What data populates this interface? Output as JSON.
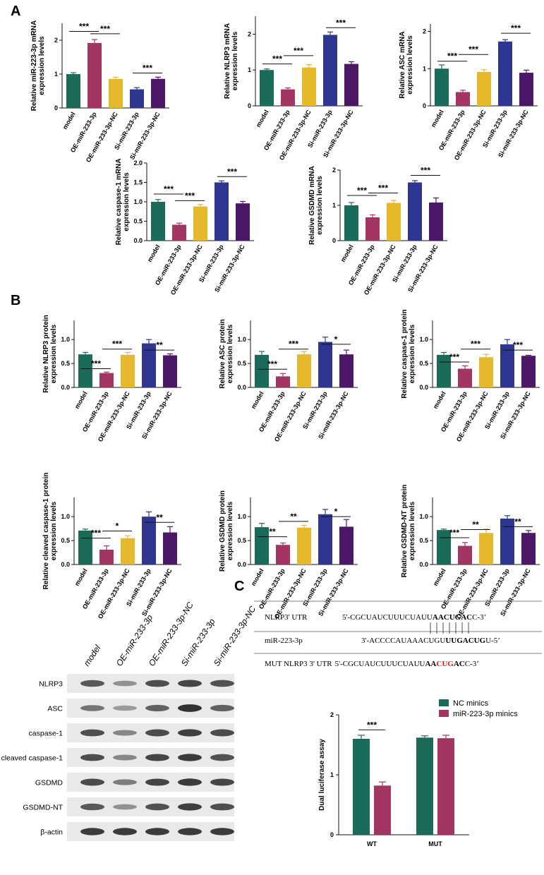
{
  "panel_labels": [
    "A",
    "B",
    "C"
  ],
  "colors": [
    "#1a6b5a",
    "#a33563",
    "#e6b92c",
    "#2e3690",
    "#4c1767"
  ],
  "chart_data": [
    {
      "type": "bar",
      "panel": "A",
      "ylabel": [
        "Relative miR-223-3p mRNA",
        "expression levels"
      ],
      "categories": [
        "model",
        "OE-miR-233-3p",
        "OE-miR-233-3p-NC",
        "Si-miR-233-3p",
        "Si-miR-233-3p-NC"
      ],
      "values": [
        1.0,
        1.92,
        0.86,
        0.55,
        0.86
      ],
      "errors": [
        0.04,
        0.1,
        0.05,
        0.05,
        0.05
      ],
      "ylim": [
        0,
        2.5
      ],
      "yticks": [
        0,
        1,
        2
      ],
      "sig": [
        {
          "from": 0,
          "to": 1,
          "label": "***",
          "y": 2.26
        },
        {
          "from": 1,
          "to": 2,
          "label": "***",
          "y": 2.19
        },
        {
          "from": 3,
          "to": 4,
          "label": "***",
          "y": 1.03
        }
      ]
    },
    {
      "type": "bar",
      "panel": "A",
      "ylabel": [
        "Relative NLRP3 mRNA",
        "expression levels"
      ],
      "categories": [
        "model",
        "OE-miR-233-3p",
        "OE-miR-233-3p-NC",
        "Si-miR-233-3p",
        "Si-miR-233-3p-NC"
      ],
      "values": [
        1.0,
        0.46,
        1.07,
        1.98,
        1.17
      ],
      "errors": [
        0.03,
        0.04,
        0.08,
        0.08,
        0.06
      ],
      "ylim": [
        0,
        2.5
      ],
      "yticks": [
        0,
        1,
        2
      ],
      "sig": [
        {
          "from": 0,
          "to": 1,
          "label": "***",
          "y": 1.17
        },
        {
          "from": 1,
          "to": 2,
          "label": "***",
          "y": 1.4
        },
        {
          "from": 3,
          "to": 4,
          "label": "***",
          "y": 2.18
        }
      ]
    },
    {
      "type": "bar",
      "panel": "A",
      "ylabel": [
        "Relative ASC mRNA",
        "expression levels"
      ],
      "categories": [
        "model",
        "OE-miR-233-3p",
        "OE-miR-233-3p-NC",
        "Si-miR-233-3p",
        "Si-miR-233-3p-NC"
      ],
      "values": [
        1.0,
        0.37,
        0.91,
        1.73,
        0.89
      ],
      "errors": [
        0.1,
        0.05,
        0.06,
        0.05,
        0.07
      ],
      "ylim": [
        0,
        2.2
      ],
      "yticks": [
        0,
        1,
        2
      ],
      "sig": [
        {
          "from": 0,
          "to": 1,
          "label": "***",
          "y": 1.2
        },
        {
          "from": 1,
          "to": 2,
          "label": "***",
          "y": 1.38
        },
        {
          "from": 3,
          "to": 4,
          "label": "***",
          "y": 1.95
        }
      ]
    },
    {
      "type": "bar",
      "panel": "A",
      "ylabel": [
        "Relative caspase-1 mRNA",
        "expression levels"
      ],
      "categories": [
        "model",
        "OE-miR-233-3p",
        "OE-miR-233-3p-NC",
        "Si-miR-233-3p",
        "Si-miR-233-3p-NC"
      ],
      "values": [
        1.0,
        0.41,
        0.88,
        1.5,
        0.96
      ],
      "errors": [
        0.06,
        0.04,
        0.05,
        0.04,
        0.05
      ],
      "ylim": [
        0,
        2.0
      ],
      "yticks": [
        0,
        0.5,
        1.0,
        1.5,
        2.0
      ],
      "sig": [
        {
          "from": 0,
          "to": 1,
          "label": "***",
          "y": 1.2
        },
        {
          "from": 1,
          "to": 2,
          "label": "***",
          "y": 1.03
        },
        {
          "from": 3,
          "to": 4,
          "label": "***",
          "y": 1.65
        }
      ]
    },
    {
      "type": "bar",
      "panel": "A",
      "ylabel": [
        "Relative GSDMD mRNA",
        "expression levels"
      ],
      "categories": [
        "model",
        "OE-miR-233-3p",
        "OE-miR-233-3p-NC",
        "Si-miR-233-3p",
        "Si-miR-233-3p-NC"
      ],
      "values": [
        1.0,
        0.66,
        1.07,
        1.65,
        1.08
      ],
      "errors": [
        0.08,
        0.07,
        0.07,
        0.05,
        0.13
      ],
      "ylim": [
        0,
        2.0
      ],
      "yticks": [
        0,
        1,
        2
      ],
      "sig": [
        {
          "from": 0,
          "to": 1,
          "label": "***",
          "y": 1.28
        },
        {
          "from": 1,
          "to": 2,
          "label": "***",
          "y": 1.35
        },
        {
          "from": 3,
          "to": 4,
          "label": "***",
          "y": 1.85
        }
      ]
    },
    {
      "type": "bar",
      "panel": "B",
      "ylabel": [
        "Relative NLRP3 protein",
        "expression levels"
      ],
      "categories": [
        "model",
        "OE-miR-233-3p",
        "OE-miR-233-3p-NC",
        "Si-miR-233-3p",
        "Si-miR-233-3p-NC"
      ],
      "values": [
        0.69,
        0.3,
        0.68,
        0.92,
        0.67
      ],
      "errors": [
        0.04,
        0.02,
        0.05,
        0.08,
        0.03
      ],
      "ylim": [
        0,
        1.4
      ],
      "yticks": [
        0,
        0.5,
        1.0
      ],
      "sig": [
        {
          "from": 0,
          "to": 1,
          "label": "***",
          "y": 0.39
        },
        {
          "from": 1,
          "to": 2,
          "label": "***",
          "y": 0.8
        },
        {
          "from": 3,
          "to": 4,
          "label": "**",
          "y": 0.78
        }
      ]
    },
    {
      "type": "bar",
      "panel": "B",
      "ylabel": [
        "Relative ASC protein",
        "expression levels"
      ],
      "categories": [
        "model",
        "OE-miR-233-3p",
        "OE-miR-233-3p-NC",
        "Si-miR-233-3p",
        "Si-miR-233-3p-NC"
      ],
      "values": [
        0.68,
        0.23,
        0.69,
        0.95,
        0.69
      ],
      "errors": [
        0.07,
        0.06,
        0.06,
        0.1,
        0.09
      ],
      "ylim": [
        0,
        1.4
      ],
      "yticks": [
        0,
        0.5,
        1.0
      ],
      "sig": [
        {
          "from": 0,
          "to": 1,
          "label": "***",
          "y": 0.38
        },
        {
          "from": 1,
          "to": 2,
          "label": "***",
          "y": 0.8
        },
        {
          "from": 3,
          "to": 4,
          "label": "*",
          "y": 0.9
        }
      ]
    },
    {
      "type": "bar",
      "panel": "B",
      "ylabel": [
        "Relative caspase-1 protein",
        "expression levels"
      ],
      "categories": [
        "model",
        "OE-miR-233-3p",
        "OE-miR-233-3p-NC",
        "Si-miR-233-3p",
        "Si-miR-233-3p-NC"
      ],
      "values": [
        0.68,
        0.39,
        0.63,
        0.9,
        0.66
      ],
      "errors": [
        0.05,
        0.06,
        0.06,
        0.1,
        0.01
      ],
      "ylim": [
        0,
        1.4
      ],
      "yticks": [
        0,
        0.5,
        1.0
      ],
      "sig": [
        {
          "from": 0,
          "to": 1,
          "label": "***",
          "y": 0.53
        },
        {
          "from": 1,
          "to": 2,
          "label": "***",
          "y": 0.8
        },
        {
          "from": 3,
          "to": 4,
          "label": "***",
          "y": 0.78
        }
      ]
    },
    {
      "type": "bar",
      "panel": "B",
      "ylabel": [
        "Relative cleaved caspase-1 protein",
        "expression levels"
      ],
      "categories": [
        "model",
        "OE-miR-233-3p",
        "OE-miR-233-3p-NC",
        "Si-miR-233-3p",
        "Si-miR-233-3p-NC"
      ],
      "values": [
        0.71,
        0.31,
        0.55,
        1.0,
        0.67
      ],
      "errors": [
        0.03,
        0.08,
        0.05,
        0.1,
        0.12
      ],
      "ylim": [
        0,
        1.4
      ],
      "yticks": [
        0,
        0.5,
        1.0
      ],
      "sig": [
        {
          "from": 0,
          "to": 1,
          "label": "***",
          "y": 0.55
        },
        {
          "from": 1,
          "to": 2,
          "label": "*",
          "y": 0.7
        },
        {
          "from": 3,
          "to": 4,
          "label": "**",
          "y": 0.88
        }
      ]
    },
    {
      "type": "bar",
      "panel": "B",
      "ylabel": [
        "Relative GSDMD protein",
        "expression levels"
      ],
      "categories": [
        "model",
        "OE-miR-233-3p",
        "OE-miR-233-3p-NC",
        "Si-miR-233-3p",
        "Si-miR-233-3p-NC"
      ],
      "values": [
        0.78,
        0.41,
        0.77,
        1.05,
        0.79
      ],
      "errors": [
        0.08,
        0.04,
        0.05,
        0.1,
        0.15
      ],
      "ylim": [
        0,
        1.4
      ],
      "yticks": [
        0,
        0.5,
        1.0
      ],
      "sig": [
        {
          "from": 0,
          "to": 1,
          "label": "**",
          "y": 0.58
        },
        {
          "from": 1,
          "to": 2,
          "label": "**",
          "y": 0.9
        },
        {
          "from": 3,
          "to": 4,
          "label": "*",
          "y": 1.0
        }
      ]
    },
    {
      "type": "bar",
      "panel": "B",
      "ylabel": [
        "Relative GSDMD-NT protein",
        "expression levels"
      ],
      "categories": [
        "model",
        "OE-miR-233-3p",
        "OE-miR-233-3p-NC",
        "Si-miR-233-3p",
        "Si-miR-233-3p-NC"
      ],
      "values": [
        0.72,
        0.39,
        0.66,
        0.96,
        0.66
      ],
      "errors": [
        0.02,
        0.07,
        0.08,
        0.06,
        0.05
      ],
      "ylim": [
        0,
        1.4
      ],
      "yticks": [
        0,
        0.5,
        1.0
      ],
      "sig": [
        {
          "from": 0,
          "to": 1,
          "label": "***",
          "y": 0.56
        },
        {
          "from": 1,
          "to": 2,
          "label": "**",
          "y": 0.73
        },
        {
          "from": 3,
          "to": 4,
          "label": "**",
          "y": 0.79
        }
      ]
    },
    {
      "type": "bar",
      "panel": "C",
      "ylabel": [
        "Dual luciferase assay"
      ],
      "categories": [
        "WT",
        "MUT"
      ],
      "series": [
        {
          "name": "NC minics",
          "values": [
            1.6,
            1.62
          ],
          "errors": [
            0.06,
            0.03
          ]
        },
        {
          "name": "miR-223-3p minics",
          "values": [
            0.82,
            1.61
          ],
          "errors": [
            0.06,
            0.05
          ]
        }
      ],
      "ylim": [
        0,
        2.0
      ],
      "yticks": [
        0,
        1,
        2
      ],
      "sig": [
        {
          "group": 0,
          "label": "***",
          "y": 1.75
        }
      ]
    }
  ],
  "blot": {
    "columns": [
      "model",
      "OE-miR-233-3p",
      "OE-miR-233-3p-NC",
      "Si-miR-233-3p",
      "Si-miR-233-3p-NC"
    ],
    "rows": [
      "NLRP3",
      "ASC",
      "caspase-1",
      "cleaved caspase-1",
      "GSDMD",
      "GSDMD-NT",
      "β-actin"
    ],
    "intensity": [
      [
        0.75,
        0.45,
        0.8,
        0.85,
        0.78
      ],
      [
        0.6,
        0.4,
        0.7,
        0.95,
        0.7
      ],
      [
        0.8,
        0.5,
        0.82,
        0.88,
        0.82
      ],
      [
        0.8,
        0.5,
        0.85,
        0.9,
        0.78
      ],
      [
        0.82,
        0.55,
        0.85,
        0.9,
        0.85
      ],
      [
        0.75,
        0.45,
        0.78,
        0.88,
        0.8
      ],
      [
        0.9,
        0.9,
        0.9,
        0.9,
        0.9
      ]
    ]
  },
  "sequences": {
    "row1": {
      "label": "NLRP3' UTR",
      "prefix": "5'-CGCUAUCUUUCUAUU",
      "bold": "AACUGAC",
      "suffix": "C-3’"
    },
    "row2": {
      "label": "miR-223-3p",
      "prefix": "3'-ACCCCAUAAACUGU",
      "bold": "UUGACUG",
      "suffix": "U-5’"
    },
    "row3": {
      "label": "MUT NLRP3 3' UTR",
      "prefix": "5'-CGCUAUCUUUCUAUU",
      "bold_start": "AA",
      "mut": "CUG",
      "bold_end": "AC",
      "suffix": "C-3’"
    }
  }
}
